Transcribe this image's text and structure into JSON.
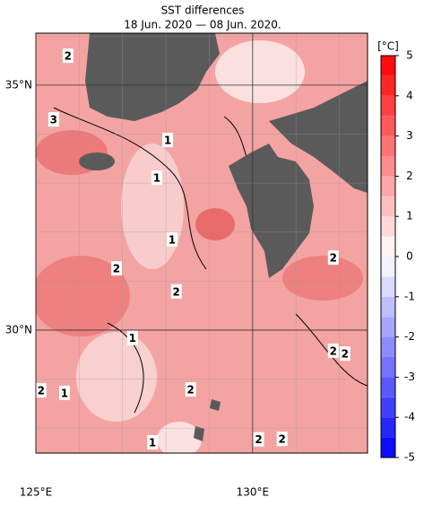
{
  "title": "SST differences",
  "subtitle": "18 Jun. 2020 — 08 Jun. 2020.",
  "map": {
    "xlim": [
      125,
      132.65
    ],
    "ylim": [
      27.49,
      36.06
    ],
    "grid": true,
    "xticks": [
      {
        "value": 125,
        "label": "125°E"
      },
      {
        "value": 130,
        "label": "130°E"
      }
    ],
    "yticks": [
      {
        "value": 35,
        "label": "35°N"
      },
      {
        "value": 30,
        "label": "30°N"
      }
    ],
    "contour_labels": [
      {
        "label": "2",
        "lon": 125.74,
        "lat": 35.6
      },
      {
        "label": "3",
        "lon": 125.41,
        "lat": 34.3
      },
      {
        "label": "1",
        "lon": 128.04,
        "lat": 33.88
      },
      {
        "label": "1",
        "lon": 127.79,
        "lat": 33.11
      },
      {
        "label": "1",
        "lon": 128.14,
        "lat": 31.85
      },
      {
        "label": "2",
        "lon": 126.86,
        "lat": 31.26
      },
      {
        "label": "2",
        "lon": 128.24,
        "lat": 30.79
      },
      {
        "label": "2",
        "lon": 131.86,
        "lat": 31.48
      },
      {
        "label": "1",
        "lon": 127.23,
        "lat": 29.84
      },
      {
        "label": "2",
        "lon": 131.86,
        "lat": 29.58
      },
      {
        "label": "2",
        "lon": 132.13,
        "lat": 29.52
      },
      {
        "label": "2",
        "lon": 125.12,
        "lat": 28.77
      },
      {
        "label": "1",
        "lon": 125.66,
        "lat": 28.72
      },
      {
        "label": "2",
        "lon": 128.57,
        "lat": 28.79
      },
      {
        "label": "1",
        "lon": 127.69,
        "lat": 27.71
      },
      {
        "label": "2",
        "lon": 130.14,
        "lat": 27.77
      },
      {
        "label": "2",
        "lon": 130.68,
        "lat": 27.78
      }
    ]
  },
  "colorbar": {
    "unit": "[°C]",
    "lim": [
      -5,
      5
    ],
    "ticks": [
      -5,
      -4,
      -3,
      -2,
      -1,
      0,
      1,
      2,
      3,
      4,
      5
    ]
  }
}
